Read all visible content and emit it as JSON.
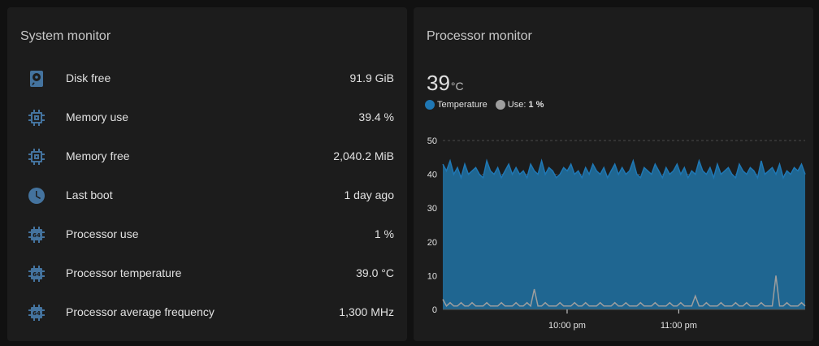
{
  "system_monitor": {
    "title": "System monitor",
    "rows": [
      {
        "label": "Disk free",
        "value": "91.9 GiB",
        "icon": "harddisk-icon"
      },
      {
        "label": "Memory use",
        "value": "39.4 %",
        "icon": "memory-icon"
      },
      {
        "label": "Memory free",
        "value": "2,040.2 MiB",
        "icon": "memory-icon"
      },
      {
        "label": "Last boot",
        "value": "1 day ago",
        "icon": "clock-icon"
      },
      {
        "label": "Processor use",
        "value": "1 %",
        "icon": "cpu-64-bit-icon"
      },
      {
        "label": "Processor temperature",
        "value": "39.0 °C",
        "icon": "cpu-64-bit-icon"
      },
      {
        "label": "Processor average frequency",
        "value": "1,300 MHz",
        "icon": "cpu-64-bit-icon"
      }
    ]
  },
  "processor_monitor": {
    "title": "Processor monitor",
    "temperature_value": "39",
    "temperature_unit": "°C",
    "legend": {
      "temperature_label": "Temperature",
      "use_label": "Use:",
      "use_value": "1 %"
    }
  },
  "colors": {
    "temperature": "#1f77b4",
    "temperature_fill": "#1f6691",
    "use": "#9e9e9e",
    "icon": "#44739e"
  },
  "chart_data": {
    "type": "area",
    "title": "",
    "xlabel": "",
    "ylabel": "",
    "ylim": [
      0,
      50
    ],
    "yticks": [
      0,
      10,
      20,
      30,
      40,
      50
    ],
    "xticks": [
      {
        "label": "10:00 pm",
        "t": 0.343
      },
      {
        "label": "11:00 pm",
        "t": 0.651
      }
    ],
    "time_range": [
      "approx. 9:18 pm",
      "approx. 11:59 pm"
    ],
    "series": [
      {
        "name": "Temperature",
        "values": [
          43,
          41,
          44,
          40,
          42,
          39,
          43,
          40,
          41,
          42,
          40,
          39,
          44,
          41,
          40,
          42,
          39,
          41,
          43,
          40,
          42,
          40,
          41,
          39,
          43,
          41,
          40,
          44,
          40,
          42,
          41,
          39,
          40,
          42,
          41,
          43,
          40,
          41,
          39,
          42,
          40,
          43,
          41,
          40,
          42,
          39,
          41,
          43,
          40,
          42,
          40,
          41,
          44,
          40,
          39,
          42,
          41,
          40,
          43,
          41,
          39,
          42,
          40,
          41,
          43,
          40,
          42,
          39,
          41,
          40,
          44,
          41,
          40,
          42,
          39,
          43,
          40,
          41,
          42,
          40,
          39,
          43,
          41,
          40,
          42,
          41,
          39,
          44,
          40,
          41,
          42,
          40,
          43,
          39,
          41,
          40,
          42,
          41,
          43,
          40
        ]
      },
      {
        "name": "Use",
        "values": [
          3,
          1,
          2,
          1,
          1,
          2,
          1,
          1,
          2,
          1,
          1,
          1,
          2,
          1,
          1,
          1,
          2,
          1,
          1,
          1,
          2,
          1,
          1,
          2,
          1,
          6,
          1,
          1,
          2,
          1,
          1,
          1,
          2,
          1,
          1,
          1,
          2,
          1,
          1,
          2,
          1,
          1,
          1,
          2,
          1,
          1,
          1,
          2,
          1,
          1,
          2,
          1,
          1,
          1,
          2,
          1,
          1,
          1,
          2,
          1,
          1,
          1,
          2,
          1,
          1,
          2,
          1,
          1,
          1,
          4,
          1,
          1,
          2,
          1,
          1,
          1,
          2,
          1,
          1,
          1,
          2,
          1,
          1,
          2,
          1,
          1,
          1,
          2,
          1,
          1,
          1,
          10,
          1,
          1,
          2,
          1,
          1,
          1,
          2,
          1
        ]
      }
    ]
  }
}
